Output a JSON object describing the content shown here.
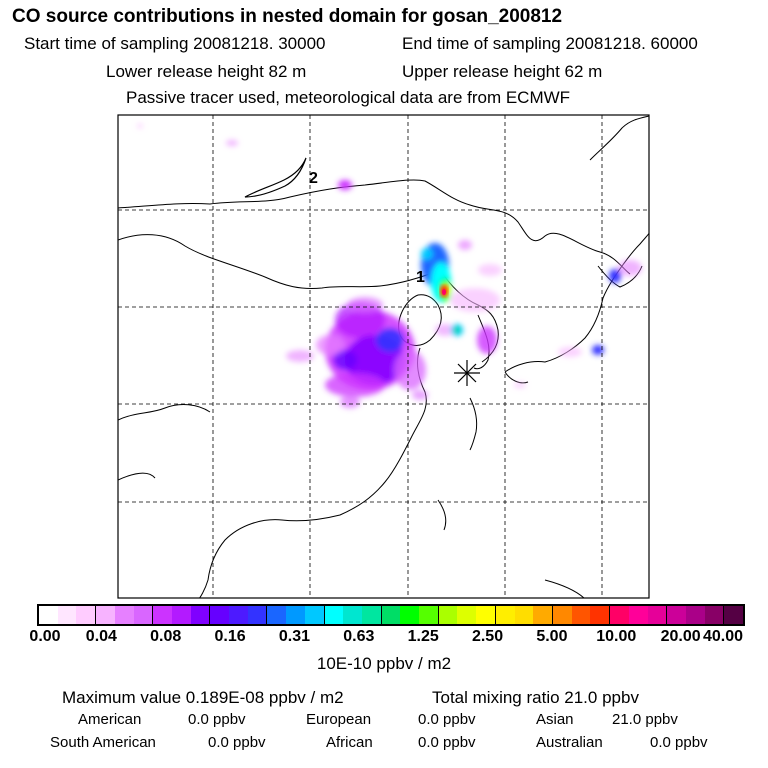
{
  "title": "CO  source contributions in nested domain for gosan_200812",
  "start_label": "Start time of sampling 20081218. 30000",
  "end_label": "End time of sampling 20081218. 60000",
  "lower_label": "Lower release height   82 m",
  "upper_label": "Upper release height   62 m",
  "tracer_label": "Passive tracer used, meteorological data are from ECMWF",
  "map_labels": {
    "label1": "1",
    "label2": "2"
  },
  "colorbar": {
    "ticks": [
      "0.00",
      "0.04",
      "0.08",
      "0.16",
      "0.31",
      "0.63",
      "1.25",
      "2.50",
      "5.00",
      "10.00",
      "20.00",
      "40.00"
    ],
    "colors": [
      "#ffffff",
      "#ffe6ff",
      "#ffccff",
      "#f7b3ff",
      "#e680ff",
      "#d966ff",
      "#cc33ff",
      "#b31aff",
      "#8000ff",
      "#6600ff",
      "#4d1aff",
      "#3333ff",
      "#1a66ff",
      "#0099ff",
      "#00c8ff",
      "#00ffff",
      "#00e6d0",
      "#00e6a0",
      "#00dd66",
      "#00ff00",
      "#55ff00",
      "#aaff00",
      "#ddff00",
      "#ffff00",
      "#ffee00",
      "#ffdd00",
      "#ffaa00",
      "#ff8800",
      "#ff5500",
      "#ff3300",
      "#ff0066",
      "#ff0099",
      "#e60099",
      "#cc0099",
      "#aa0088",
      "#880066",
      "#550044"
    ],
    "unit": "10E-10 ppbv / m2"
  },
  "summary": {
    "max_label": "Maximum value  0.189E-08 ppbv / m2",
    "total_label": "Total mixing ratio       21.0 ppbv",
    "rows": [
      [
        {
          "name": "American",
          "value": "0.0 ppbv"
        },
        {
          "name": "European",
          "value": "0.0 ppbv"
        },
        {
          "name": "Asian",
          "value": "21.0 ppbv"
        }
      ],
      [
        {
          "name": "South American",
          "value": "0.0 ppbv"
        },
        {
          "name": "African",
          "value": "0.0 ppbv"
        },
        {
          "name": "Australian",
          "value": "0.0 ppbv"
        }
      ]
    ]
  }
}
